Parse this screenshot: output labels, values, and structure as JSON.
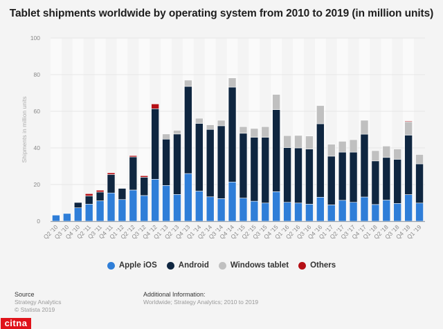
{
  "chart_data": {
    "type": "bar",
    "stacked": true,
    "title": "Tablet shipments worldwide by operating system from 2010 to 2019 (in million units)",
    "xlabel": "",
    "ylabel": "Shipments in million units",
    "ylim": [
      0,
      100
    ],
    "yticks": [
      0,
      20,
      40,
      60,
      80,
      100
    ],
    "grid": true,
    "legend_position": "bottom-center",
    "categories": [
      "Q2 '10",
      "Q3 '10",
      "Q4 '10",
      "Q2 '11",
      "Q3 '11",
      "Q4 '11",
      "Q1 '12",
      "Q2 '12",
      "Q3 '12",
      "Q4 '12",
      "Q1 '13",
      "Q2 '13",
      "Q4 '13",
      "Q1 '14",
      "Q2 '14",
      "Q3 '14",
      "Q4 '14",
      "Q1 '15",
      "Q2 '15",
      "Q3 '15",
      "Q4 '15",
      "Q1 '16",
      "Q2 '16",
      "Q3 '16",
      "Q4 '16",
      "Q1 '17",
      "Q2 '17",
      "Q3 '17",
      "Q4 '17",
      "Q1 '18",
      "Q2 '18",
      "Q3 '18",
      "Q4 '18",
      "Q1 '19"
    ],
    "series": [
      {
        "name": "Apple iOS",
        "color": "#2f7ed8",
        "values": [
          3.3,
          4.2,
          7.3,
          9.3,
          11.1,
          15.4,
          11.8,
          17.0,
          14.0,
          22.9,
          19.5,
          14.6,
          26.0,
          16.4,
          13.3,
          12.3,
          21.4,
          12.6,
          10.9,
          9.9,
          16.1,
          10.3,
          9.9,
          9.3,
          13.1,
          8.9,
          11.4,
          10.3,
          13.2,
          9.1,
          11.5,
          9.7,
          14.5,
          9.9
        ]
      },
      {
        "name": "Android",
        "color": "#0f2640",
        "values": [
          0,
          0,
          2.9,
          4.5,
          4.8,
          10.1,
          6.1,
          18.1,
          10.0,
          38.5,
          25.3,
          33.0,
          47.6,
          37.0,
          36.8,
          39.8,
          51.8,
          35.4,
          34.9,
          35.9,
          44.8,
          29.9,
          30.1,
          30.1,
          40.1,
          26.6,
          26.3,
          27.4,
          34.3,
          23.8,
          23.3,
          24.1,
          32.5,
          21.4
        ]
      },
      {
        "name": "Windows tablet",
        "color": "#c0c0c0",
        "values": [
          0,
          0,
          0,
          0,
          0,
          0,
          0,
          0,
          0,
          0,
          2.8,
          2.0,
          3.4,
          2.8,
          2.5,
          3.0,
          5.0,
          3.6,
          4.8,
          5.8,
          8.3,
          6.5,
          6.8,
          7.1,
          9.9,
          6.5,
          5.9,
          6.8,
          7.6,
          5.6,
          6.2,
          5.6,
          7.3,
          5.1
        ]
      },
      {
        "name": "Others",
        "color": "#b50f15",
        "values": [
          0,
          0,
          0,
          1.2,
          1.0,
          0.9,
          0,
          0.7,
          0.8,
          2.6,
          0,
          0,
          0,
          0,
          0,
          0,
          0,
          0,
          0,
          0,
          0,
          0,
          0,
          0,
          0,
          0,
          0,
          0,
          0,
          0,
          0,
          0,
          0.4,
          0
        ]
      }
    ]
  },
  "legend": [
    {
      "label": "Apple iOS",
      "color": "#2f7ed8"
    },
    {
      "label": "Android",
      "color": "#0f2640"
    },
    {
      "label": "Windows tablet",
      "color": "#c0c0c0"
    },
    {
      "label": "Others",
      "color": "#b50f15"
    }
  ],
  "footer": {
    "source_heading": "Source",
    "source_line1": "Strategy Analytics",
    "source_line2": "© Statista 2019",
    "info_heading": "Additional Information:",
    "info_line": "Worldwide; Strategy Analytics; 2010 to 2019"
  },
  "watermark": "CITNA"
}
